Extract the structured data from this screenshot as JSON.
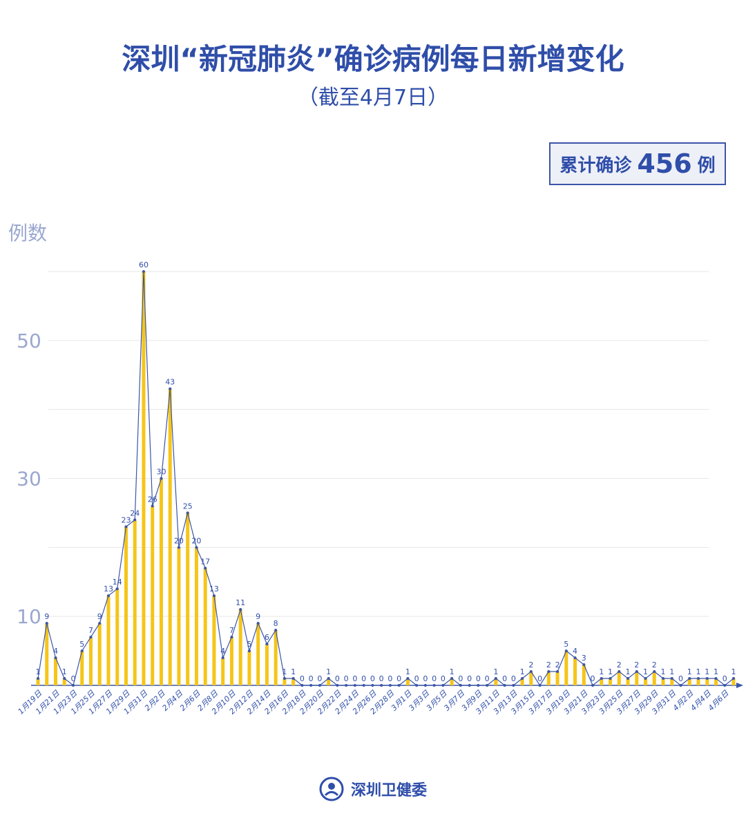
{
  "title": "深圳“新冠肺炎”确诊病例每日新增变化",
  "subtitle": "（截至4月7日）",
  "total_box": {
    "prefix": "累计确诊",
    "value": 456,
    "suffix": "例"
  },
  "footer": "深圳卫健委",
  "chart_data": {
    "type": "bar-line",
    "y_label": "例数",
    "categories": [
      "1月19日",
      null,
      "1月21日",
      null,
      "1月23日",
      null,
      "1月25日",
      null,
      "1月27日",
      null,
      "1月29日",
      null,
      "1月31日",
      null,
      "2月2日",
      null,
      "2月4日",
      null,
      "2月6日",
      null,
      "2月8日",
      null,
      "2月10日",
      null,
      "2月12日",
      null,
      "2月14日",
      null,
      "2月16日",
      null,
      "2月18日",
      null,
      "2月20日",
      null,
      "2月22日",
      null,
      "2月24日",
      null,
      "2月26日",
      null,
      "2月28日",
      null,
      "3月1日",
      null,
      "3月3日",
      null,
      "3月5日",
      null,
      "3月7日",
      null,
      "3月9日",
      null,
      "3月11日",
      null,
      "3月13日",
      null,
      "3月15日",
      null,
      "3月17日",
      null,
      "3月19日",
      null,
      "3月21日",
      null,
      "3月23日",
      null,
      "3月25日",
      null,
      "3月27日",
      null,
      "3月29日",
      null,
      "3月31日",
      null,
      "4月2日",
      null,
      "4月4日",
      null,
      "4月6日",
      null
    ],
    "values": [
      1,
      9,
      4,
      1,
      0,
      5,
      7,
      9,
      13,
      14,
      23,
      24,
      60,
      26,
      30,
      43,
      20,
      25,
      20,
      17,
      13,
      4,
      7,
      11,
      5,
      9,
      6,
      8,
      1,
      1,
      0,
      0,
      0,
      1,
      0,
      0,
      0,
      0,
      0,
      0,
      0,
      0,
      1,
      0,
      0,
      0,
      0,
      1,
      0,
      0,
      0,
      0,
      1,
      0,
      0,
      1,
      2,
      0,
      2,
      2,
      5,
      4,
      3,
      0,
      1,
      1,
      2,
      1,
      2,
      1,
      2,
      1,
      1,
      0,
      1,
      1,
      1,
      1,
      0,
      1
    ],
    "bar_color": "#f5c518",
    "line_color": "#3b55a8",
    "ylim": [
      0,
      60
    ],
    "yticks": [
      10,
      30,
      50
    ],
    "ygrid": [
      10,
      20,
      30,
      40,
      50,
      60
    ]
  }
}
